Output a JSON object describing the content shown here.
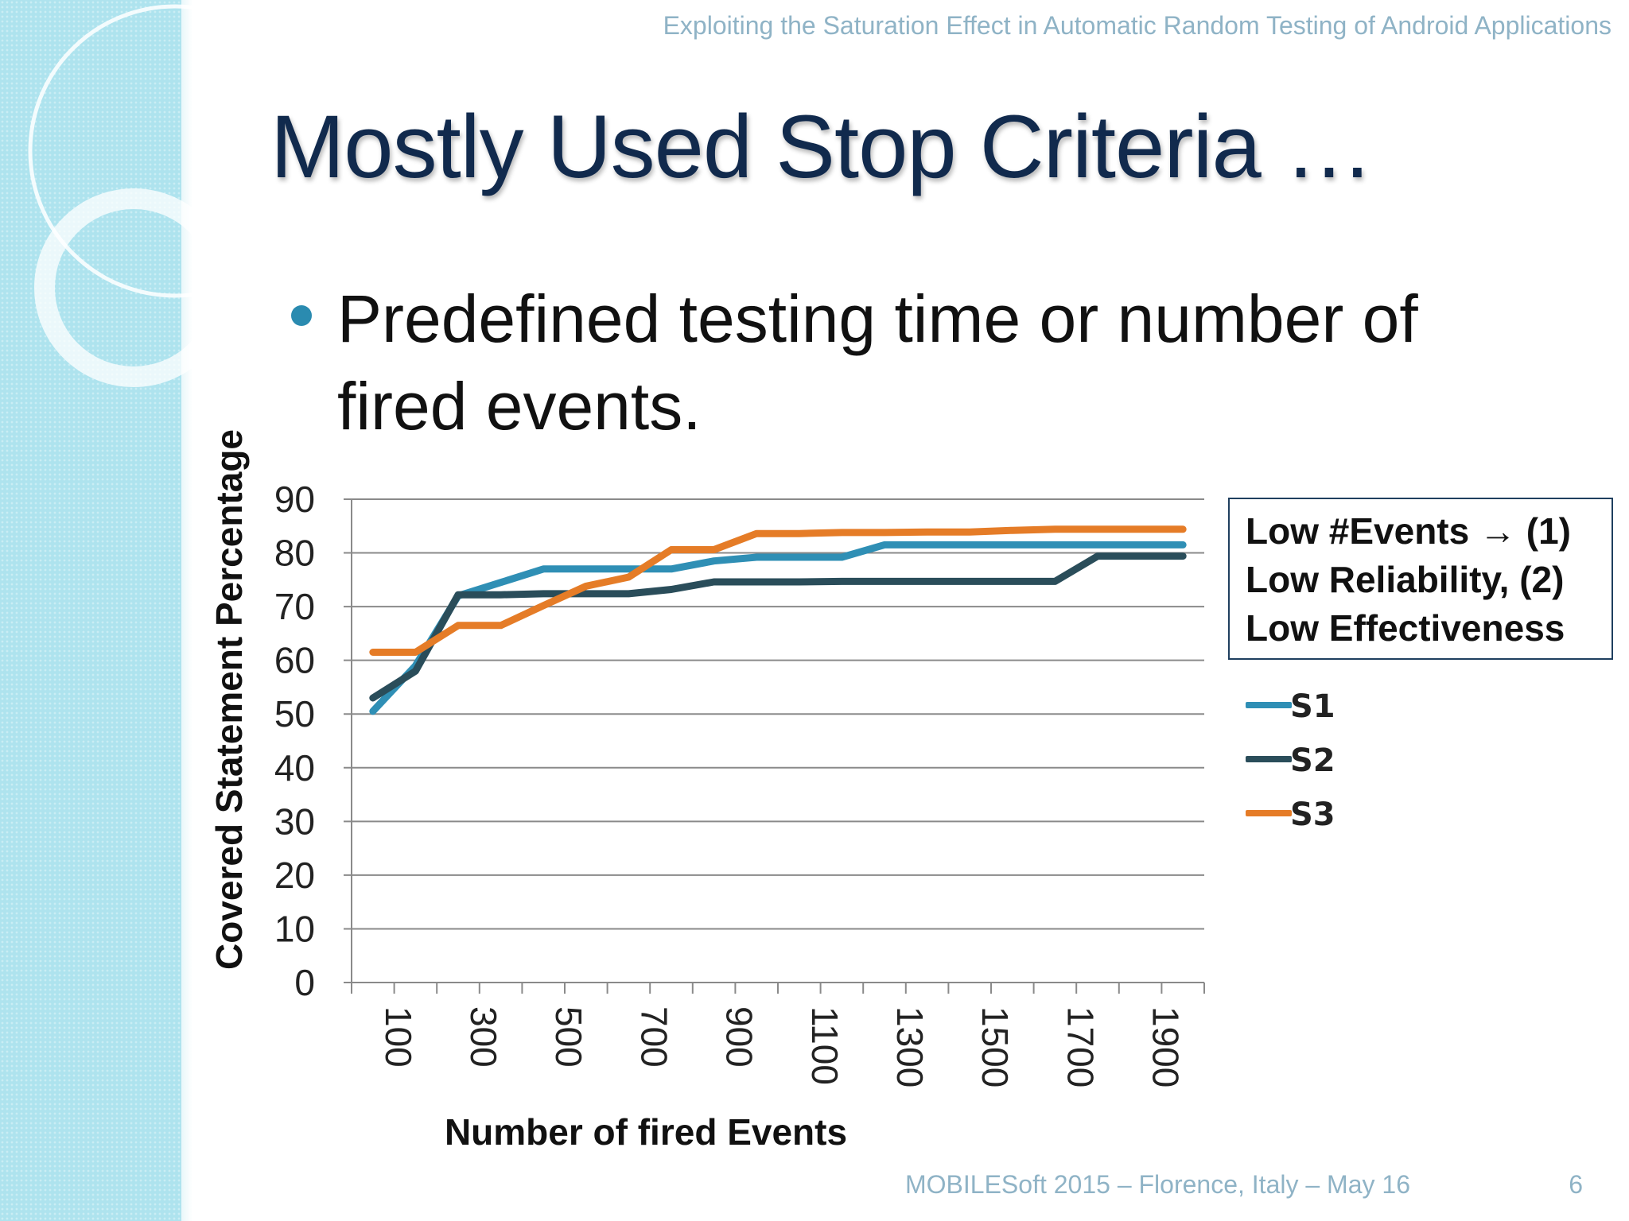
{
  "header": {
    "paper_title": "Exploiting the Saturation Effect in Automatic Random Testing of Android Applications"
  },
  "slide": {
    "title": "Mostly Used Stop Criteria …",
    "bullet": "Predefined testing time or number of fired events."
  },
  "annotation": {
    "lines": [
      "Low #Events → (1)",
      "Low Reliability, (2)",
      "Low Effectiveness"
    ]
  },
  "footer": {
    "text": "MOBILESoft 2015 – Florence, Italy – May 16",
    "page": "6"
  },
  "colors": {
    "S1": "#2f8fb5",
    "S2": "#2a4d5a",
    "S3": "#e57c27",
    "strip": "#aee3ee",
    "title": "#112a4d"
  },
  "chart_data": {
    "type": "line",
    "xlabel": "Number of fired Events",
    "ylabel": "Covered Statement Percentage",
    "ylim": [
      0,
      90
    ],
    "yticks": [
      "0",
      "10",
      "20",
      "30",
      "40",
      "50",
      "60",
      "70",
      "80",
      "90"
    ],
    "categories": [
      100,
      200,
      300,
      400,
      500,
      600,
      700,
      800,
      900,
      1000,
      1100,
      1200,
      1300,
      1400,
      1500,
      1600,
      1700,
      1800,
      1900,
      2000
    ],
    "xtick_labels": [
      "100",
      "300",
      "500",
      "700",
      "900",
      "1100",
      "1300",
      "1500",
      "1700",
      "1900"
    ],
    "grid": true,
    "legend": "right",
    "series": [
      {
        "name": "S1",
        "values": [
          50.5,
          59,
          72,
          74.5,
          77,
          77,
          77,
          77,
          78.5,
          79.2,
          79.2,
          79.2,
          81.5,
          81.5,
          81.5,
          81.5,
          81.5,
          81.5,
          81.5,
          81.5
        ]
      },
      {
        "name": "S2",
        "values": [
          53,
          58,
          72.2,
          72.2,
          72.4,
          72.4,
          72.4,
          73.2,
          74.6,
          74.6,
          74.6,
          74.7,
          74.7,
          74.7,
          74.7,
          74.7,
          74.7,
          79.4,
          79.4,
          79.4
        ]
      },
      {
        "name": "S3",
        "values": [
          61.5,
          61.5,
          66.5,
          66.5,
          70.2,
          73.8,
          75.5,
          80.6,
          80.6,
          83.6,
          83.6,
          83.8,
          83.8,
          83.9,
          83.9,
          84.2,
          84.4,
          84.4,
          84.4,
          84.4
        ]
      }
    ]
  }
}
